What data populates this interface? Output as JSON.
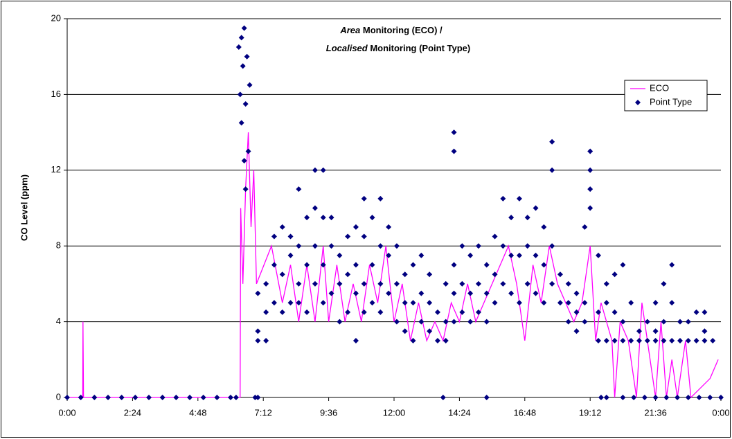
{
  "chart_data": {
    "type": "scatter",
    "title_lines": [
      [
        "Area",
        "Monitoring (ECO) /"
      ],
      [
        "Localised",
        "Monitoring (Point Type)"
      ]
    ],
    "ylabel": "CO Level (ppm)",
    "xlim": [
      0,
      24
    ],
    "xticks": [
      {
        "value": 0,
        "label": "0:00"
      },
      {
        "value": 2.4,
        "label": "2:24"
      },
      {
        "value": 4.8,
        "label": "4:48"
      },
      {
        "value": 7.2,
        "label": "7:12"
      },
      {
        "value": 9.6,
        "label": "9:36"
      },
      {
        "value": 12,
        "label": "12:00"
      },
      {
        "value": 14.4,
        "label": "14:24"
      },
      {
        "value": 16.8,
        "label": "16:48"
      },
      {
        "value": 19.2,
        "label": "19:12"
      },
      {
        "value": 21.6,
        "label": "21:36"
      },
      {
        "value": 24,
        "label": "0:00"
      }
    ],
    "ylim": [
      0,
      20
    ],
    "yticks": [
      0,
      4,
      8,
      12,
      16,
      20
    ],
    "grid": true,
    "legend": "upper right",
    "series": [
      {
        "name": "ECO",
        "kind": "line",
        "color": "#ff00ff",
        "x": [
          0,
          0.57,
          0.58,
          0.6,
          6.35,
          6.37,
          6.45,
          6.55,
          6.65,
          6.75,
          6.85,
          6.95,
          7.5,
          7.9,
          8.2,
          8.5,
          8.8,
          9.1,
          9.4,
          9.6,
          9.9,
          10.2,
          10.5,
          10.8,
          11.1,
          11.4,
          11.7,
          12.0,
          12.3,
          12.6,
          12.9,
          13.2,
          13.5,
          13.8,
          14.1,
          14.4,
          14.7,
          15.0,
          15.3,
          15.6,
          15.9,
          16.2,
          16.5,
          16.8,
          17.1,
          17.4,
          17.7,
          18.0,
          18.3,
          18.6,
          18.9,
          19.2,
          19.4,
          19.6,
          19.8,
          20.0,
          20.1,
          20.3,
          20.6,
          20.9,
          21.1,
          21.3,
          21.6,
          21.8,
          22.0,
          22.2,
          22.4,
          22.7,
          22.9,
          23.6,
          23.9
        ],
        "values": [
          0,
          0,
          4,
          0,
          0,
          10,
          6,
          11,
          14,
          9,
          12,
          6,
          8,
          5,
          7,
          4,
          7,
          4,
          8,
          4,
          7,
          4,
          6,
          4,
          7,
          5,
          8,
          4,
          6,
          3,
          5,
          3,
          4,
          3,
          5,
          4,
          6,
          4,
          5,
          6,
          7,
          8,
          6,
          3,
          7,
          5,
          8,
          6,
          5,
          4,
          5,
          8,
          3,
          5,
          4,
          3,
          0,
          4,
          3,
          0,
          5,
          3,
          0,
          4,
          0,
          2,
          0,
          3,
          0,
          1,
          2
        ]
      },
      {
        "name": "Point Type",
        "kind": "scatter",
        "color": "#000080",
        "x": [
          0,
          0.5,
          1,
          1.5,
          2,
          2.5,
          3,
          3.5,
          4,
          4.5,
          5,
          5.5,
          6,
          6.2,
          6.9,
          7.0,
          13.8,
          15.4,
          19.6,
          19.8,
          20.4,
          20.8,
          21.2,
          21.6,
          22,
          22.4,
          22.8,
          23.2,
          23.6,
          24,
          6.3,
          6.35,
          6.4,
          6.45,
          6.5,
          6.55,
          6.6,
          6.65,
          6.7,
          6.4,
          6.5,
          6.55,
          7.0,
          7.0,
          7.0,
          7.3,
          7.3,
          7.3,
          7.6,
          7.6,
          7.6,
          7.9,
          7.9,
          7.9,
          8.2,
          8.2,
          8.2,
          8.5,
          8.5,
          8.5,
          8.5,
          8.8,
          8.8,
          8.8,
          9.1,
          9.1,
          9.1,
          9.1,
          9.4,
          9.4,
          9.4,
          9.4,
          9.7,
          9.7,
          9.7,
          10.0,
          10.0,
          10.0,
          10.3,
          10.3,
          10.3,
          10.6,
          10.6,
          10.6,
          10.6,
          10.9,
          10.9,
          10.9,
          10.9,
          11.2,
          11.2,
          11.2,
          11.5,
          11.5,
          11.5,
          11.5,
          11.8,
          11.8,
          11.8,
          12.1,
          12.1,
          12.1,
          12.4,
          12.4,
          12.4,
          12.7,
          12.7,
          12.7,
          13.0,
          13.0,
          13.0,
          13.3,
          13.3,
          13.3,
          13.6,
          13.6,
          13.9,
          13.9,
          13.9,
          14.2,
          14.2,
          14.2,
          14.2,
          14.2,
          14.5,
          14.5,
          14.5,
          14.8,
          14.8,
          14.8,
          15.1,
          15.1,
          15.1,
          15.4,
          15.4,
          15.4,
          15.7,
          15.7,
          15.7,
          16.0,
          16.0,
          16.0,
          16.3,
          16.3,
          16.3,
          16.6,
          16.6,
          16.6,
          16.9,
          16.9,
          16.9,
          17.2,
          17.2,
          17.2,
          17.5,
          17.5,
          17.5,
          17.8,
          17.8,
          17.8,
          17.8,
          18.1,
          18.1,
          18.4,
          18.4,
          18.4,
          18.7,
          18.7,
          18.7,
          19.0,
          19.0,
          19.0,
          19.2,
          19.2,
          19.2,
          19.2,
          19.5,
          19.5,
          19.5,
          19.8,
          19.8,
          19.8,
          20.1,
          20.1,
          20.1,
          20.4,
          20.4,
          20.4,
          20.7,
          20.7,
          21.0,
          21.0,
          21.3,
          21.3,
          21.6,
          21.6,
          21.6,
          21.9,
          21.9,
          21.9,
          22.2,
          22.2,
          22.2,
          22.5,
          22.5,
          22.8,
          22.8,
          23.1,
          23.1,
          23.4,
          23.4,
          23.4,
          23.7
        ],
        "values": [
          0,
          0,
          0,
          0,
          0,
          0,
          0,
          0,
          0,
          0,
          0,
          0,
          0,
          0,
          0,
          0,
          0,
          0,
          0,
          0,
          0,
          0,
          0,
          0,
          0,
          0,
          0,
          0,
          0,
          0,
          18.5,
          16,
          19,
          17.5,
          19.5,
          15.5,
          18,
          13,
          16.5,
          14.5,
          12.5,
          11,
          3,
          3.5,
          5.5,
          3,
          4.5,
          6,
          5,
          7,
          8.5,
          4.5,
          6.5,
          9,
          5,
          7.5,
          8.5,
          5,
          6,
          8,
          11,
          4.5,
          7,
          9.5,
          6,
          8,
          10,
          12,
          5,
          7,
          9.5,
          12,
          5.5,
          8,
          9.5,
          4,
          6,
          7.5,
          4.5,
          6.5,
          8.5,
          3,
          5.5,
          7,
          9,
          4.5,
          6,
          8.5,
          10.5,
          5,
          7,
          9.5,
          4.5,
          6,
          8,
          10.5,
          5.5,
          7.5,
          9,
          4,
          6,
          8,
          3.5,
          5,
          6.5,
          3,
          5,
          7,
          4,
          5.5,
          7.5,
          3.5,
          5,
          6.5,
          3,
          4.5,
          3,
          4,
          6,
          4,
          5.5,
          7,
          14,
          13,
          4.5,
          6,
          8,
          4,
          5.5,
          7.5,
          4.5,
          6,
          8,
          4,
          5.5,
          7,
          5,
          6.5,
          8.5,
          6,
          8,
          10.5,
          5.5,
          7.5,
          9.5,
          5,
          7.5,
          10.5,
          6,
          8,
          9.5,
          5.5,
          7.5,
          10,
          5,
          7,
          9,
          6,
          8,
          12,
          13.5,
          5,
          6.5,
          4,
          5,
          6,
          3.5,
          4.5,
          5.5,
          4,
          5,
          9,
          10,
          11,
          12,
          13,
          3,
          4.5,
          7.5,
          3,
          5,
          6,
          3,
          4.5,
          6.5,
          3,
          4,
          7,
          3,
          5,
          3,
          3.5,
          3,
          4,
          3,
          3.5,
          5,
          3,
          4,
          6,
          3,
          5,
          7,
          3,
          4,
          3,
          4,
          3,
          4.5,
          3,
          3.5,
          4.5,
          3
        ]
      }
    ]
  }
}
